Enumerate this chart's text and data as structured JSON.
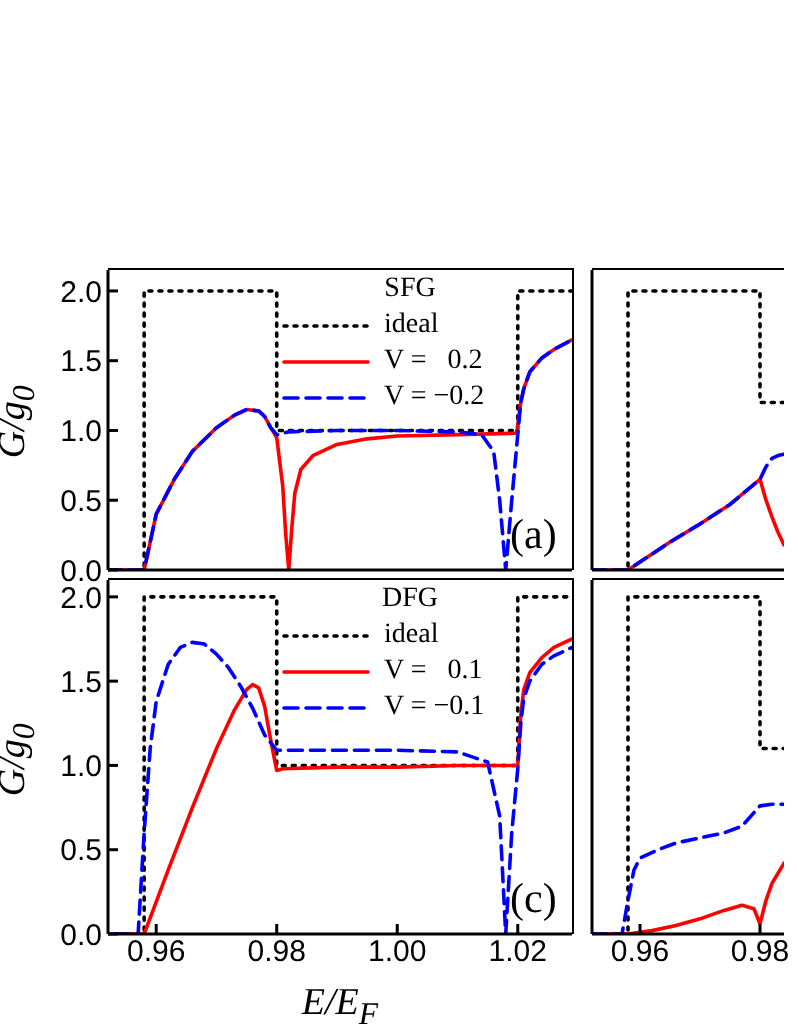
{
  "chart_data": [
    {
      "type": "line",
      "legend_title": "SFG",
      "ylabel": "G/g$_{0}$",
      "annotations": [
        "(a)"
      ],
      "xlim": [
        0.952,
        1.029
      ],
      "ylim": [
        0,
        2.15
      ],
      "xticks": [
        {
          "value": 0.96,
          "label": null
        },
        {
          "value": 0.98,
          "label": null
        },
        {
          "value": 1.0,
          "label": null
        },
        {
          "value": 1.02,
          "label": null
        }
      ],
      "yticks": [
        {
          "value": 0,
          "label": "0.0"
        },
        {
          "value": 0.5,
          "label": "0.5"
        },
        {
          "value": 1,
          "label": "1.0"
        },
        {
          "value": 1.5,
          "label": "1.5"
        },
        {
          "value": 2,
          "label": "2.0"
        }
      ],
      "tick_labels": "y",
      "legend": "top right",
      "series": [
        {
          "name": "ideal",
          "color": "#000000",
          "line_style": "dotted",
          "x": [
            0.952,
            0.958,
            0.958,
            0.98,
            0.98,
            1.02,
            1.02,
            1.029
          ],
          "values": [
            0,
            0,
            2,
            2,
            1,
            1,
            2,
            2
          ]
        },
        {
          "name": "V =   0.2",
          "color": "#ff0000",
          "line_style": "solid",
          "x": [
            0.952,
            0.958,
            0.96,
            0.963,
            0.966,
            0.97,
            0.973,
            0.975,
            0.977,
            0.978,
            0.979,
            0.98,
            0.981,
            0.9815,
            0.982,
            0.9825,
            0.983,
            0.984,
            0.986,
            0.99,
            0.995,
            1.0,
            1.01,
            1.0195,
            1.0198,
            1.0205,
            1.021,
            1.022,
            1.024,
            1.026,
            1.029
          ],
          "values": [
            0,
            0,
            0.4,
            0.65,
            0.85,
            1.02,
            1.11,
            1.15,
            1.14,
            1.1,
            1.02,
            0.95,
            0.6,
            0.25,
            0,
            0.3,
            0.55,
            0.72,
            0.82,
            0.9,
            0.94,
            0.96,
            0.97,
            0.98,
            0.98,
            1.2,
            1.3,
            1.42,
            1.52,
            1.58,
            1.65
          ]
        },
        {
          "name": "V = −0.2",
          "color": "#0000ff",
          "line_style": "dashed",
          "x": [
            0.952,
            0.958,
            0.96,
            0.963,
            0.966,
            0.97,
            0.973,
            0.975,
            0.977,
            0.978,
            0.979,
            0.98,
            0.982,
            0.99,
            1.0,
            1.01,
            1.014,
            1.016,
            1.017,
            1.018,
            1.019,
            1.02,
            1.0205,
            1.021,
            1.022,
            1.024,
            1.026,
            1.029
          ],
          "values": [
            0,
            0,
            0.4,
            0.65,
            0.85,
            1.02,
            1.11,
            1.15,
            1.14,
            1.1,
            1.02,
            0.97,
            0.99,
            1.0,
            1.0,
            0.99,
            0.97,
            0.85,
            0.5,
            0,
            0.5,
            0.97,
            1.2,
            1.3,
            1.42,
            1.52,
            1.58,
            1.65
          ]
        }
      ]
    },
    {
      "type": "line",
      "xlim": [
        0.952,
        0.984
      ],
      "ylim": [
        0,
        2.15
      ],
      "xticks": [
        {
          "value": 0.96,
          "label": null
        },
        {
          "value": 0.98,
          "label": null
        }
      ],
      "yticks": [
        {
          "value": 0,
          "label": null
        },
        {
          "value": 0.5,
          "label": null
        },
        {
          "value": 1,
          "label": null
        },
        {
          "value": 1.5,
          "label": null
        },
        {
          "value": 2,
          "label": null
        }
      ],
      "tick_labels": false,
      "series": [
        {
          "color": "#000000",
          "line_style": "dotted",
          "x": [
            0.952,
            0.958,
            0.958,
            0.98,
            0.98,
            0.984
          ],
          "values": [
            0,
            0,
            2,
            2,
            1.2,
            1.2
          ]
        },
        {
          "color": "#ff0000",
          "line_style": "solid",
          "x": [
            0.952,
            0.958,
            0.965,
            0.97,
            0.975,
            0.98,
            0.981,
            0.982,
            0.983,
            0.984
          ],
          "values": [
            0,
            0,
            0.2,
            0.33,
            0.47,
            0.65,
            0.5,
            0.38,
            0.27,
            0.18
          ]
        },
        {
          "color": "#0000ff",
          "line_style": "dashed",
          "x": [
            0.952,
            0.958,
            0.965,
            0.97,
            0.975,
            0.98,
            0.981,
            0.982,
            0.983,
            0.984
          ],
          "values": [
            0,
            0,
            0.2,
            0.33,
            0.47,
            0.65,
            0.74,
            0.8,
            0.82,
            0.83
          ]
        }
      ]
    },
    {
      "type": "line",
      "legend_title": "DFG",
      "xlabel": "E/E$_{F}$",
      "ylabel": "G/g$_{0}$",
      "annotations": [
        "(c)"
      ],
      "xlim": [
        0.952,
        1.029
      ],
      "ylim": [
        0,
        2.1
      ],
      "xticks": [
        {
          "value": 0.96,
          "label": "0.96"
        },
        {
          "value": 0.98,
          "label": "0.98"
        },
        {
          "value": 1.0,
          "label": "1.00"
        },
        {
          "value": 1.02,
          "label": "1.02"
        }
      ],
      "yticks": [
        {
          "value": 0,
          "label": "0.0"
        },
        {
          "value": 0.5,
          "label": "0.5"
        },
        {
          "value": 1,
          "label": "1.0"
        },
        {
          "value": 1.5,
          "label": "1.5"
        },
        {
          "value": 2,
          "label": "2.0"
        }
      ],
      "legend": "top right",
      "series": [
        {
          "name": "ideal",
          "color": "#000000",
          "line_style": "dotted",
          "x": [
            0.952,
            0.958,
            0.958,
            0.98,
            0.98,
            1.02,
            1.02,
            1.029
          ],
          "values": [
            0,
            0,
            2,
            2,
            1,
            1,
            2,
            2
          ]
        },
        {
          "name": "V =   0.1",
          "color": "#ff0000",
          "line_style": "solid",
          "x": [
            0.953,
            0.958,
            0.962,
            0.966,
            0.97,
            0.973,
            0.975,
            0.976,
            0.977,
            0.978,
            0.979,
            0.98,
            0.981,
            0.99,
            1.0,
            1.01,
            1.02,
            1.0205,
            1.021,
            1.022,
            1.024,
            1.026,
            1.029
          ],
          "values": [
            0,
            0,
            0.38,
            0.75,
            1.1,
            1.33,
            1.45,
            1.48,
            1.46,
            1.35,
            1.15,
            0.97,
            0.98,
            0.99,
            0.99,
            1.0,
            1.0,
            1.3,
            1.45,
            1.55,
            1.64,
            1.7,
            1.75
          ]
        },
        {
          "name": "V = −0.1",
          "color": "#0000ff",
          "line_style": "dashed",
          "x": [
            0.953,
            0.957,
            0.958,
            0.959,
            0.96,
            0.962,
            0.964,
            0.966,
            0.968,
            0.97,
            0.972,
            0.974,
            0.976,
            0.978,
            0.98,
            0.99,
            1.0,
            1.01,
            1.015,
            1.017,
            1.018,
            1.019,
            1.02,
            1.0205,
            1.021,
            1.022,
            1.024,
            1.026,
            1.029
          ],
          "values": [
            0,
            0,
            0.6,
            1.1,
            1.38,
            1.6,
            1.7,
            1.73,
            1.72,
            1.66,
            1.58,
            1.47,
            1.34,
            1.18,
            1.09,
            1.09,
            1.09,
            1.08,
            1.02,
            0.7,
            0,
            0.6,
            0.98,
            1.25,
            1.4,
            1.5,
            1.6,
            1.65,
            1.7
          ]
        }
      ]
    },
    {
      "type": "line",
      "xlim": [
        0.952,
        0.984
      ],
      "ylim": [
        0,
        2.1
      ],
      "xticks": [
        {
          "value": 0.96,
          "label": "0.96"
        },
        {
          "value": 0.98,
          "label": "0.98"
        }
      ],
      "yticks": [
        {
          "value": 0,
          "label": null
        },
        {
          "value": 0.5,
          "label": null
        },
        {
          "value": 1,
          "label": null
        },
        {
          "value": 1.5,
          "label": null
        },
        {
          "value": 2,
          "label": null
        }
      ],
      "tick_labels": "x",
      "series": [
        {
          "color": "#000000",
          "line_style": "dotted",
          "x": [
            0.952,
            0.958,
            0.958,
            0.98,
            0.98,
            0.984
          ],
          "values": [
            0,
            0,
            2,
            2,
            1.1,
            1.1
          ]
        },
        {
          "color": "#ff0000",
          "line_style": "solid",
          "x": [
            0.952,
            0.958,
            0.962,
            0.966,
            0.97,
            0.974,
            0.977,
            0.979,
            0.98,
            0.981,
            0.982,
            0.984
          ],
          "values": [
            0,
            0,
            0.02,
            0.05,
            0.09,
            0.14,
            0.17,
            0.15,
            0.06,
            0.2,
            0.3,
            0.42
          ]
        },
        {
          "color": "#0000ff",
          "line_style": "dashed",
          "x": [
            0.952,
            0.957,
            0.958,
            0.959,
            0.96,
            0.963,
            0.966,
            0.97,
            0.974,
            0.977,
            0.979,
            0.98,
            0.982,
            0.984
          ],
          "values": [
            0,
            0,
            0.2,
            0.38,
            0.45,
            0.5,
            0.54,
            0.57,
            0.6,
            0.64,
            0.72,
            0.76,
            0.77,
            0.77
          ]
        }
      ]
    }
  ]
}
